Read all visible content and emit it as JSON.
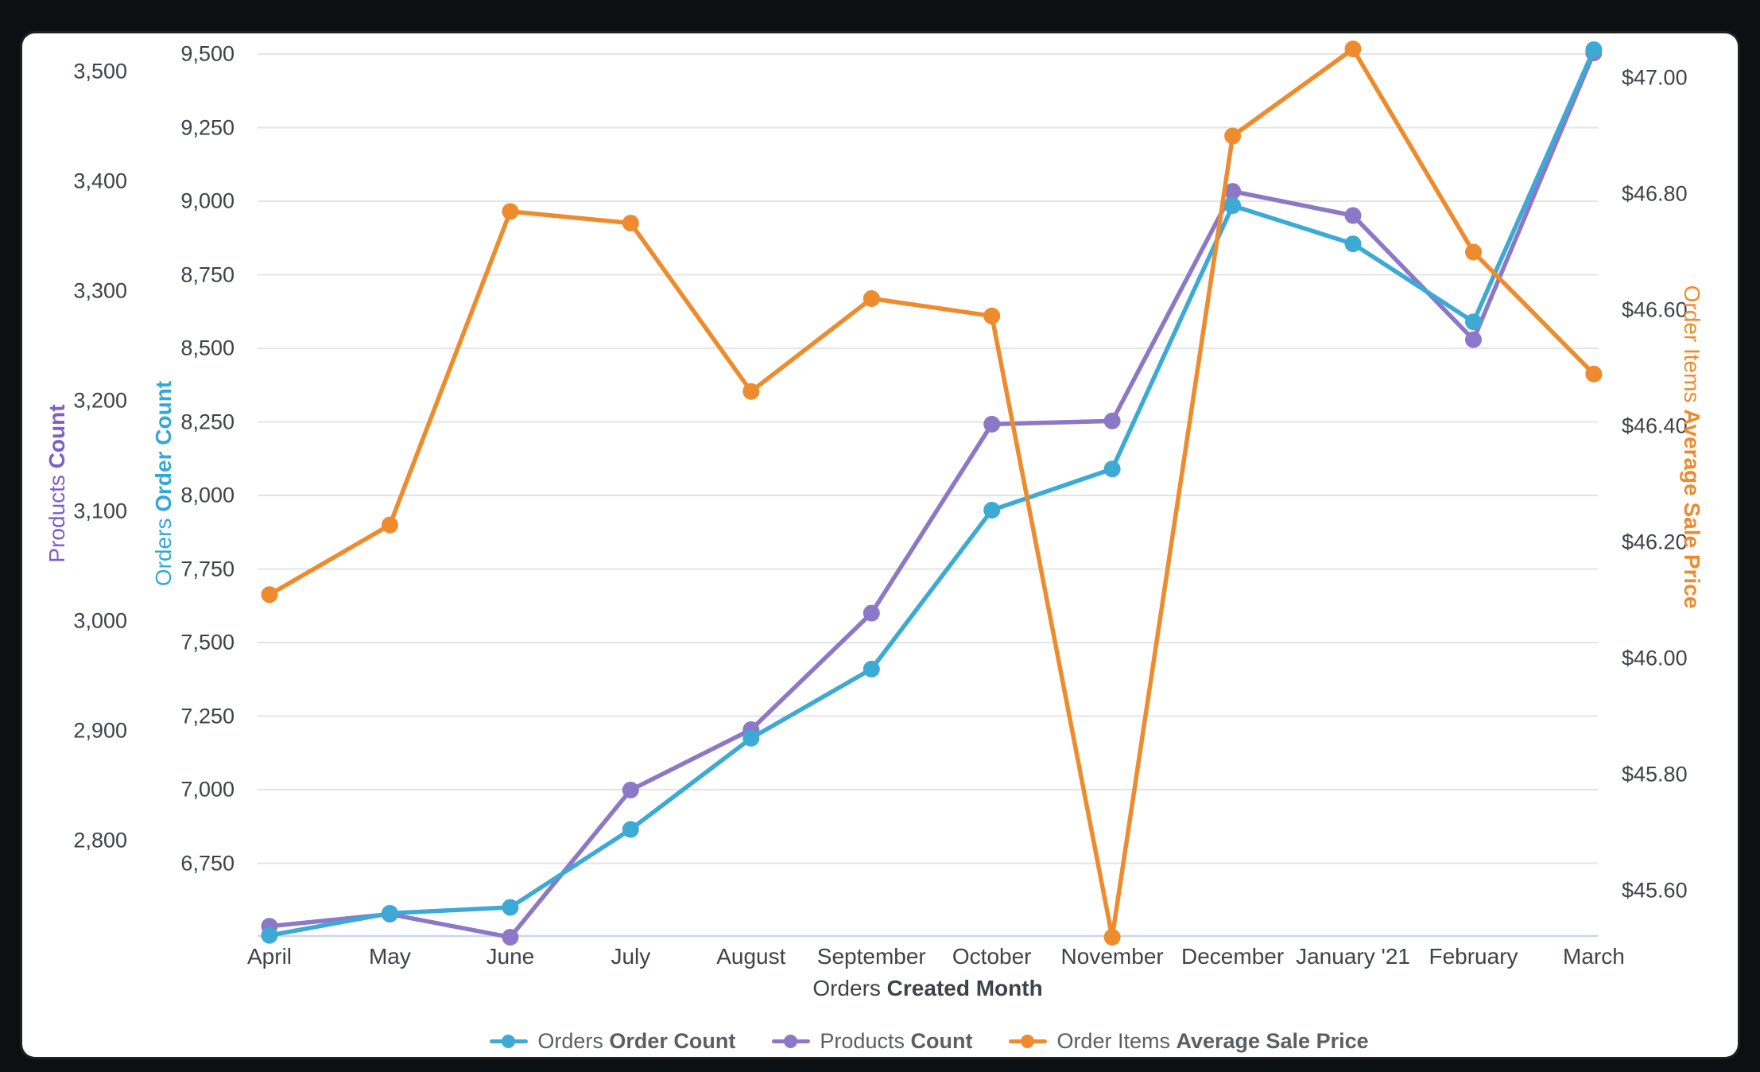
{
  "window": {
    "frame_color": "#0D1012",
    "card_color": "#FFFFFF",
    "gridline_color": "#E4E4E4",
    "baseline_color": "#C9D7EC"
  },
  "chart_data": {
    "type": "line",
    "categories": [
      "April",
      "May",
      "June",
      "July",
      "August",
      "September",
      "October",
      "November",
      "December",
      "January '21",
      "February",
      "March"
    ],
    "series": [
      {
        "id": "orders-order-count",
        "label_pre": "Orders ",
        "label_bold": "Order Count",
        "color": "#3DAAD6",
        "axis": "inner_left",
        "values": [
          6505,
          6580,
          6600,
          6865,
          7175,
          7410,
          7950,
          8090,
          8985,
          8855,
          8590,
          9515
        ]
      },
      {
        "id": "products-count",
        "label_pre": "Products ",
        "label_bold": "Count",
        "color": "#8C78C6",
        "axis": "outer_left",
        "values": [
          2722,
          2733,
          2712,
          2846,
          2901,
          3007,
          3179,
          3182,
          3391,
          3369,
          3256,
          3517
        ]
      },
      {
        "id": "order-items-average-sale-price",
        "label_pre": "Order Items ",
        "label_bold": "Average Sale Price",
        "color": "#ED8B2D",
        "axis": "right",
        "values": [
          46.11,
          46.23,
          46.77,
          46.75,
          46.46,
          46.62,
          46.59,
          45.52,
          46.9,
          47.05,
          46.7,
          46.49
        ]
      }
    ],
    "x_axis": {
      "title_pre": "Orders ",
      "title_bold": "Created Month"
    },
    "axes": {
      "outer_left": {
        "title_pre": "Products ",
        "title_bold": "Count",
        "title_color": "#7C5EC6",
        "ticks": [
          "3,500",
          "3,400",
          "3,300",
          "3,200",
          "3,100",
          "3,000",
          "2,900",
          "2,800"
        ],
        "range_note": [
          2712,
          3520
        ]
      },
      "inner_left": {
        "title_pre": "Orders ",
        "title_bold": "Order Count",
        "title_color": "#33A8D8",
        "ticks": [
          "9,500",
          "9,250",
          "9,000",
          "8,750",
          "8,500",
          "8,250",
          "8,000",
          "7,750",
          "7,500",
          "7,250",
          "7,000",
          "6,750"
        ],
        "range_note": [
          6500,
          9575
        ]
      },
      "right": {
        "title_pre": "Order Items ",
        "title_bold": "Average Sale Price",
        "title_color": "#ED8B2D",
        "ticks": [
          "$47.00",
          "$46.80",
          "$46.60",
          "$46.40",
          "$46.20",
          "$46.00",
          "$45.80",
          "$45.60"
        ],
        "range_note": [
          45.52,
          47.08
        ]
      }
    },
    "legend_position": "bottom",
    "grid": "horizontal-only"
  }
}
